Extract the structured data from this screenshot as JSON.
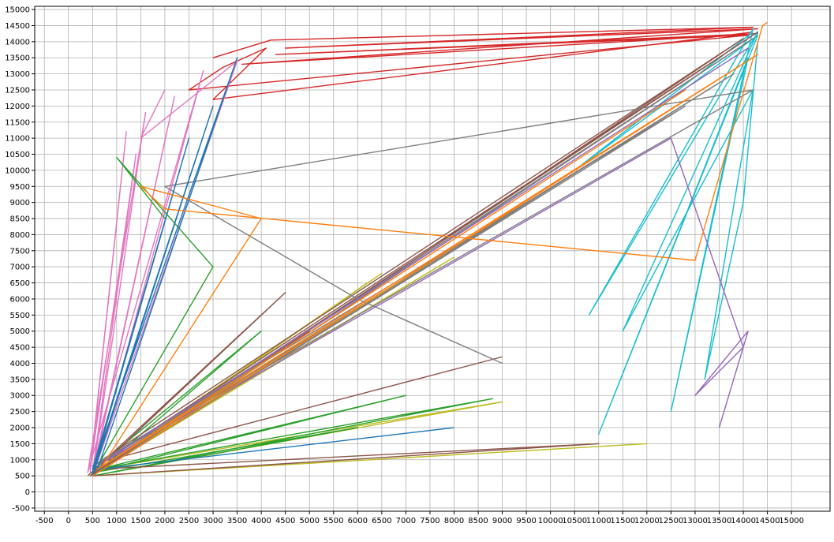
{
  "chart_data": {
    "type": "line",
    "title": "",
    "xlabel": "",
    "ylabel": "",
    "xlim": [
      -700,
      15800
    ],
    "ylim": [
      -600,
      15100
    ],
    "x_ticks": [
      -500,
      0,
      500,
      1000,
      1500,
      2000,
      2500,
      3000,
      3500,
      4000,
      4500,
      5000,
      5500,
      6000,
      6500,
      7000,
      7500,
      8000,
      8500,
      9000,
      9500,
      10000,
      10500,
      11000,
      11500,
      12000,
      12500,
      13000,
      13500,
      14000,
      14500,
      15000
    ],
    "y_ticks": [
      -500,
      0,
      500,
      1000,
      1500,
      2000,
      2500,
      3000,
      3500,
      4000,
      4500,
      5000,
      5500,
      6000,
      6500,
      7000,
      7500,
      8000,
      8500,
      9000,
      9500,
      10000,
      10500,
      11000,
      11500,
      12000,
      12500,
      13000,
      13500,
      14000,
      14500,
      15000
    ],
    "grid": true,
    "legend": "none",
    "colors": [
      "#1f77b4",
      "#ff7f0e",
      "#2ca02c",
      "#d62728",
      "#9467bd",
      "#8c564b",
      "#e377c2",
      "#7f7f7f",
      "#bcbd22",
      "#17becf"
    ],
    "series": [
      {
        "color": "#d62728",
        "x": [
          3000,
          4200,
          14200,
          4500,
          14300,
          3600,
          14300,
          4300,
          14100,
          2500,
          3200,
          4100,
          3000,
          14200
        ],
        "y": [
          13500,
          14050,
          14450,
          13800,
          14400,
          13300,
          14250,
          13600,
          14200,
          12500,
          13200,
          13800,
          12200,
          14300
        ]
      },
      {
        "color": "#17becf",
        "x": [
          14200,
          10500,
          14300,
          11000,
          14100,
          12500,
          14200,
          10800,
          14300,
          11500,
          14200,
          13200,
          14000,
          14300
        ],
        "y": [
          14300,
          10000,
          14200,
          1800,
          13500,
          2500,
          14400,
          5500,
          14300,
          5000,
          12500,
          3500,
          9000,
          14000
        ]
      },
      {
        "color": "#bcbd22",
        "x": [
          500,
          6500,
          500,
          7500,
          500,
          6200,
          450,
          8000,
          500,
          7000,
          600,
          9000,
          500,
          12000
        ],
        "y": [
          600,
          6800,
          550,
          7100,
          500,
          6500,
          500,
          7300,
          600,
          7000,
          700,
          2800,
          500,
          1500
        ]
      },
      {
        "color": "#e377c2",
        "x": [
          450,
          1200,
          450,
          1400,
          500,
          2200,
          500,
          1600,
          400,
          2800,
          500,
          3500,
          1500,
          2000
        ],
        "y": [
          600,
          11200,
          700,
          10500,
          600,
          12300,
          500,
          11800,
          600,
          13100,
          500,
          13400,
          11000,
          12500
        ]
      },
      {
        "color": "#2ca02c",
        "x": [
          500,
          6000,
          500,
          7000,
          600,
          8800,
          500,
          4000,
          600,
          3000,
          1000,
          2000
        ],
        "y": [
          500,
          2000,
          600,
          3000,
          700,
          2900,
          500,
          5000,
          800,
          7000,
          10400,
          8500
        ]
      },
      {
        "color": "#8c564b",
        "x": [
          400,
          4500,
          450,
          5000,
          500,
          14300,
          500,
          11000,
          500,
          14000,
          600,
          9000
        ],
        "y": [
          500,
          6200,
          500,
          5000,
          600,
          14300,
          700,
          1500,
          500,
          14100,
          900,
          4200
        ]
      },
      {
        "color": "#7f7f7f",
        "x": [
          500,
          14200,
          600,
          13800,
          600,
          12800,
          500,
          14200,
          2000,
          6000,
          9000
        ],
        "y": [
          500,
          14100,
          700,
          13000,
          600,
          12000,
          800,
          12500,
          9500,
          6000,
          4000
        ]
      },
      {
        "color": "#9467bd",
        "x": [
          600,
          14100,
          700,
          12500,
          14000,
          13000,
          14100,
          13500
        ],
        "y": [
          800,
          13800,
          900,
          11000,
          4500,
          3000,
          5000,
          2000
        ]
      },
      {
        "color": "#1f77b4",
        "x": [
          500,
          3000,
          500,
          2500,
          500,
          3500,
          600,
          8000
        ],
        "y": [
          500,
          12000,
          600,
          11000,
          700,
          13500,
          700,
          2000
        ]
      },
      {
        "color": "#ff7f0e",
        "x": [
          500,
          14300,
          600,
          12800,
          700,
          4000,
          1500,
          2000,
          13000,
          14400,
          14500
        ],
        "y": [
          500,
          13600,
          700,
          12500,
          800,
          8500,
          9500,
          8800,
          7200,
          14500,
          14600
        ]
      }
    ]
  }
}
